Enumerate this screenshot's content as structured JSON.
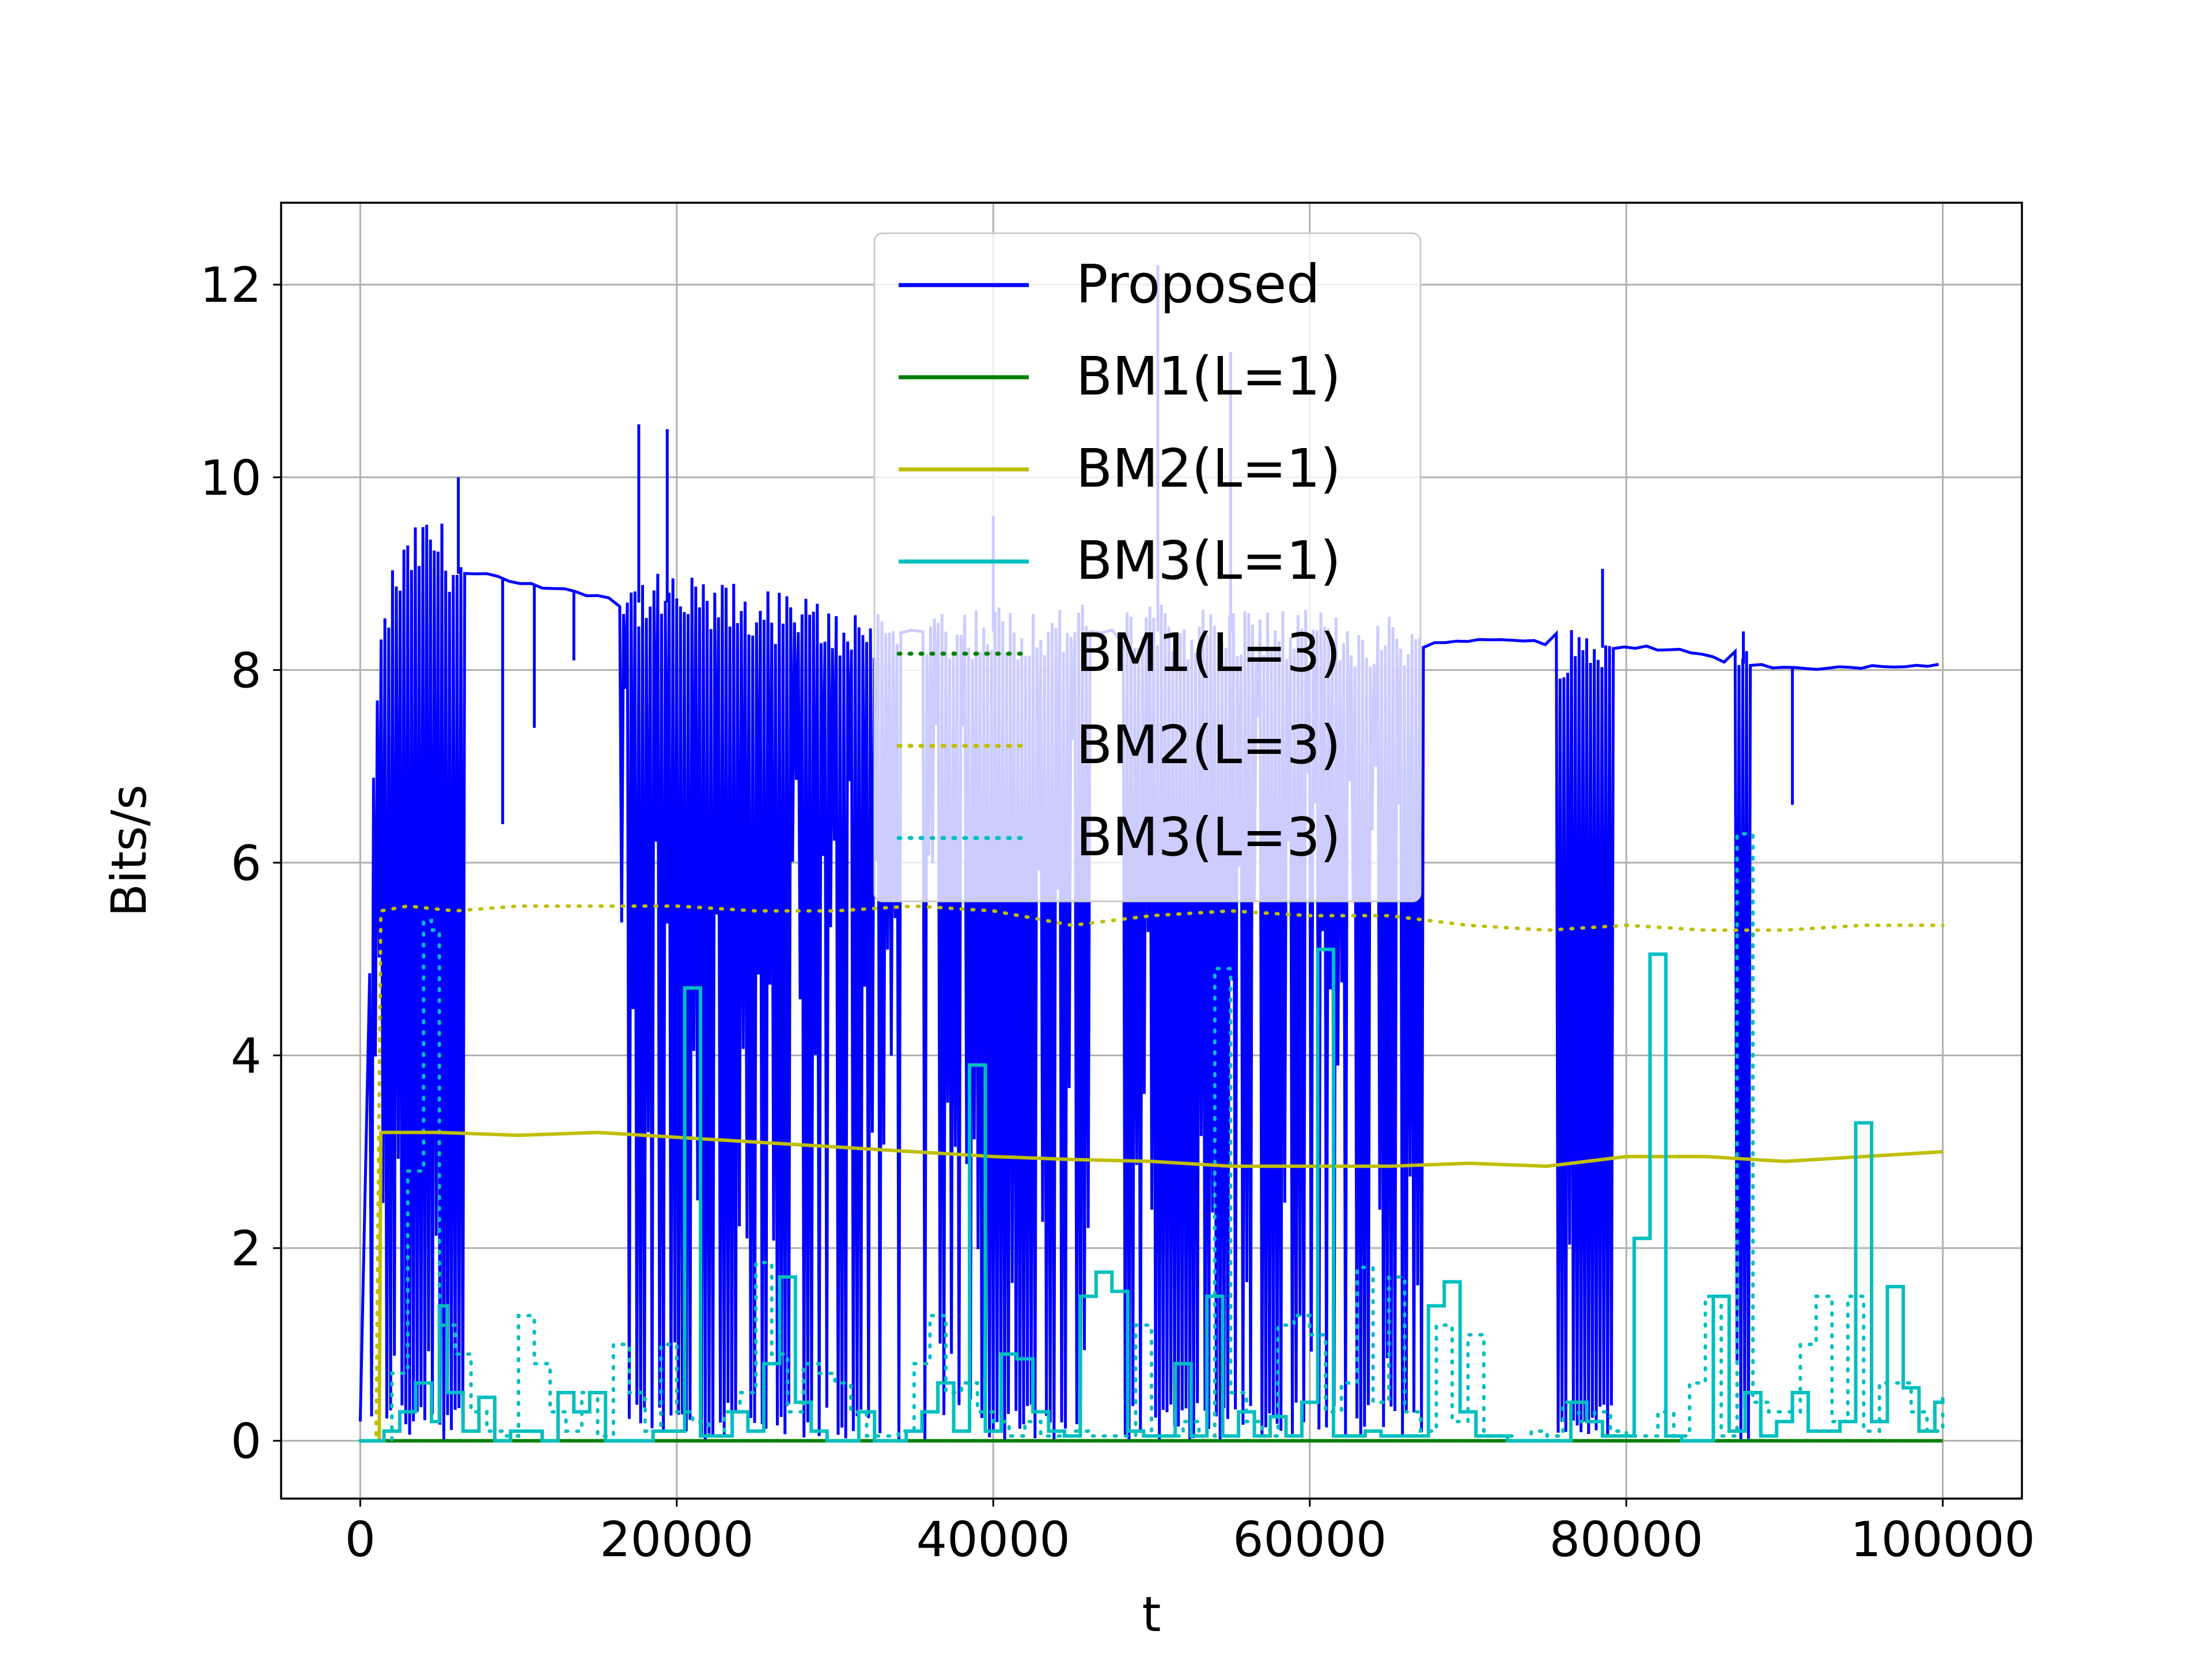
{
  "chart_data": {
    "type": "line",
    "title": "",
    "xlabel": "t",
    "ylabel": "Bits/s",
    "xlim": [
      -5000,
      105000
    ],
    "ylim": [
      -0.6,
      12.85
    ],
    "xticks": [
      0,
      20000,
      40000,
      60000,
      80000,
      100000
    ],
    "xtick_labels": [
      "0",
      "20000",
      "40000",
      "60000",
      "80000",
      "100000"
    ],
    "yticks": [
      0,
      2,
      4,
      6,
      8,
      10,
      12
    ],
    "ytick_labels": [
      "0",
      "2",
      "4",
      "6",
      "8",
      "10",
      "12"
    ],
    "grid": true,
    "legend_position": "top-center",
    "colors": {
      "blue": "#0000ff",
      "green": "#008000",
      "olive": "#bfbf00",
      "cyan": "#00bfbf"
    },
    "series": [
      {
        "name": "Proposed",
        "color": "#0000ff",
        "style": "solid",
        "note_shape": "level envelope with dense dips toward 0 in oscillation bands",
        "x": [
          0,
          1000,
          2000,
          3000,
          4000,
          5000,
          6000,
          8000,
          10000,
          14000,
          17000,
          20000,
          24000,
          28000,
          30000,
          34000,
          38000,
          42000,
          46000,
          50000,
          54000,
          58000,
          62000,
          66000,
          67000,
          70000,
          74000,
          76000,
          80000,
          84000,
          86000,
          88000,
          92000,
          96000,
          100000
        ],
        "y": [
          0.2,
          7.8,
          8.8,
          9.1,
          9.3,
          9.3,
          9.0,
          9.0,
          8.9,
          8.8,
          8.7,
          8.7,
          8.6,
          8.5,
          8.4,
          8.4,
          8.4,
          8.4,
          8.4,
          8.4,
          8.4,
          8.35,
          8.3,
          8.3,
          8.25,
          8.3,
          8.3,
          8.2,
          8.25,
          8.2,
          8.1,
          8.05,
          8.0,
          8.05,
          8.05
        ],
        "oscillation_bands": [
          [
            0,
            6500
          ],
          [
            16000,
            34000
          ],
          [
            35000,
            46000
          ],
          [
            48000,
            67000
          ],
          [
            75000,
            79000
          ],
          [
            86500,
            87800
          ]
        ],
        "spikes": [
          [
            6200,
            10.0
          ],
          [
            17600,
            10.55
          ],
          [
            19400,
            10.5
          ],
          [
            40000,
            9.6
          ],
          [
            50400,
            12.2
          ],
          [
            55000,
            11.3
          ],
          [
            78500,
            9.05
          ],
          [
            87400,
            8.4
          ]
        ],
        "dips": [
          [
            9000,
            6.4
          ],
          [
            11000,
            7.4
          ],
          [
            13500,
            8.1
          ],
          [
            90500,
            6.6
          ]
        ]
      },
      {
        "name": "BM1(L=1)",
        "color": "#008000",
        "style": "solid",
        "x": [
          0,
          1000,
          20000,
          40000,
          60000,
          80000,
          100000
        ],
        "y": [
          0,
          0,
          0,
          0,
          0,
          0,
          0
        ]
      },
      {
        "name": "BM2(L=1)",
        "color": "#bfbf00",
        "style": "solid",
        "x": [
          0,
          1200,
          1300,
          5000,
          10000,
          15000,
          20000,
          25000,
          30000,
          35000,
          40000,
          45000,
          50000,
          55000,
          60000,
          65000,
          70000,
          75000,
          80000,
          85000,
          90000,
          95000,
          100000
        ],
        "y": [
          0,
          0,
          3.2,
          3.2,
          3.17,
          3.2,
          3.15,
          3.1,
          3.05,
          3.0,
          2.95,
          2.92,
          2.9,
          2.85,
          2.85,
          2.85,
          2.88,
          2.85,
          2.95,
          2.95,
          2.9,
          2.95,
          3.0
        ]
      },
      {
        "name": "BM3(L=1)",
        "color": "#00bfbf",
        "style": "step",
        "x": [
          0,
          1500,
          2500,
          3500,
          4500,
          5000,
          5500,
          6500,
          7500,
          8500,
          9500,
          10500,
          11500,
          12500,
          13500,
          14500,
          15500,
          16500,
          17500,
          18500,
          19500,
          20500,
          21500,
          22500,
          23500,
          24500,
          25500,
          26500,
          27500,
          28500,
          29500,
          30500,
          31500,
          32500,
          33500,
          34500,
          35500,
          36500,
          37500,
          38500,
          39500,
          40500,
          41500,
          42500,
          43500,
          44500,
          45500,
          46500,
          47500,
          48500,
          49500,
          50500,
          51500,
          52500,
          53500,
          54500,
          55500,
          56500,
          57500,
          58500,
          59500,
          60500,
          61500,
          62500,
          63500,
          64500,
          65500,
          66500,
          67500,
          68500,
          69500,
          70500,
          71500,
          72500,
          73500,
          74500,
          75500,
          76500,
          77500,
          78500,
          79500,
          80500,
          81500,
          82500,
          83500,
          84500,
          85500,
          86500,
          87500,
          88500,
          89500,
          90500,
          91500,
          92500,
          93500,
          94500,
          95500,
          96500,
          97500,
          98500,
          99500,
          100000
        ],
        "y": [
          0,
          0.1,
          0.3,
          0.6,
          0.2,
          1.4,
          0.5,
          0.1,
          0.45,
          0,
          0.1,
          0.1,
          0,
          0.5,
          0.3,
          0.5,
          0,
          0,
          0,
          0.1,
          0.1,
          4.7,
          0.05,
          0.05,
          0.3,
          0.1,
          0.8,
          1.7,
          0.4,
          0.1,
          0,
          0,
          0.3,
          0,
          0,
          0.1,
          0.3,
          0.6,
          0.1,
          3.9,
          0.1,
          0.9,
          0.85,
          0.3,
          0.1,
          0.05,
          1.5,
          1.75,
          1.55,
          0.1,
          0.05,
          0.05,
          0.8,
          0.05,
          1.5,
          0.05,
          0.3,
          0.05,
          0.25,
          0.05,
          0.4,
          5.1,
          0.05,
          0.05,
          0.1,
          0.05,
          0.05,
          0.05,
          1.4,
          1.65,
          0.3,
          0.05,
          0.05,
          0,
          0,
          0,
          0,
          0.4,
          0.2,
          0.05,
          0.05,
          2.1,
          5.05,
          0.05,
          0,
          0,
          1.5,
          0.1,
          0.5,
          0.05,
          0.2,
          0.5,
          0.1,
          0.1,
          0.2,
          3.3,
          0.2,
          1.6,
          0.55,
          0.1,
          0.4,
          0.45
        ]
      },
      {
        "name": "BM1(L=3)",
        "color": "#008000",
        "style": "dotted",
        "x": [
          0,
          100000
        ],
        "y": [
          0,
          0
        ]
      },
      {
        "name": "BM2(L=3)",
        "color": "#bfbf00",
        "style": "dotted",
        "x": [
          0,
          1000,
          1300,
          3000,
          6000,
          10000,
          15000,
          20000,
          25000,
          30000,
          35000,
          40000,
          45000,
          50000,
          55000,
          60000,
          65000,
          70000,
          75000,
          80000,
          85000,
          90000,
          95000,
          100000
        ],
        "y": [
          0,
          0,
          5.5,
          5.55,
          5.5,
          5.55,
          5.55,
          5.55,
          5.5,
          5.5,
          5.55,
          5.5,
          5.35,
          5.45,
          5.5,
          5.45,
          5.45,
          5.35,
          5.3,
          5.35,
          5.3,
          5.3,
          5.35,
          5.35
        ]
      },
      {
        "name": "BM3(L=3)",
        "color": "#00bfbf",
        "style": "step",
        "x": [
          0,
          2000,
          3000,
          4000,
          4500,
          5000,
          6000,
          7000,
          8000,
          9000,
          10000,
          11000,
          12000,
          13000,
          14000,
          15000,
          16000,
          17000,
          18000,
          19000,
          20000,
          21000,
          22000,
          23000,
          24000,
          25000,
          26000,
          27000,
          28000,
          29000,
          30000,
          31000,
          32000,
          33000,
          34000,
          35000,
          36000,
          37000,
          38000,
          39000,
          40000,
          41000,
          42000,
          43000,
          44000,
          45000,
          46000,
          47000,
          48000,
          49000,
          50000,
          51000,
          52000,
          53000,
          54000,
          55000,
          56000,
          57000,
          58000,
          59000,
          60000,
          61000,
          62000,
          63000,
          64000,
          65000,
          66000,
          67000,
          68000,
          69000,
          70000,
          71000,
          72000,
          73000,
          74000,
          75000,
          76000,
          77000,
          78000,
          79000,
          80000,
          81000,
          82000,
          83000,
          84000,
          85000,
          86000,
          87000,
          88000,
          89000,
          90000,
          91000,
          92000,
          93000,
          94000,
          95000,
          96000,
          97000,
          98000,
          99000,
          100000
        ],
        "y": [
          0,
          0.7,
          2.8,
          5.4,
          5.3,
          1.2,
          0.9,
          0.3,
          0.1,
          0.05,
          1.3,
          0.8,
          0.3,
          0.1,
          0.5,
          0.05,
          1.0,
          0.5,
          0.1,
          1.0,
          0.3,
          0.2,
          0.05,
          0.3,
          0.5,
          1.85,
          0.9,
          0.3,
          0.8,
          0.7,
          0.6,
          0.3,
          0.05,
          0.05,
          0.1,
          0.8,
          1.3,
          0.5,
          0.6,
          0.3,
          0.2,
          0.05,
          0.2,
          0.05,
          0.05,
          0.1,
          0.05,
          0.05,
          0.05,
          1.2,
          0.05,
          0.05,
          0.2,
          0.05,
          4.9,
          0.5,
          0.2,
          0.05,
          1.2,
          1.3,
          1.1,
          0.3,
          0.6,
          1.8,
          0.4,
          1.7,
          0.3,
          0.1,
          1.2,
          0.2,
          1.1,
          0.05,
          0.05,
          0,
          0.1,
          0.05,
          0.4,
          0.2,
          0.3,
          0.1,
          0.05,
          0.05,
          0.3,
          0.05,
          0.6,
          1.5,
          0.05,
          6.3,
          0.4,
          0.3,
          0.3,
          1.0,
          1.5,
          0.2,
          1.5,
          0.1,
          0.6,
          0.6,
          0.3,
          0.1,
          0.3
        ]
      }
    ]
  }
}
